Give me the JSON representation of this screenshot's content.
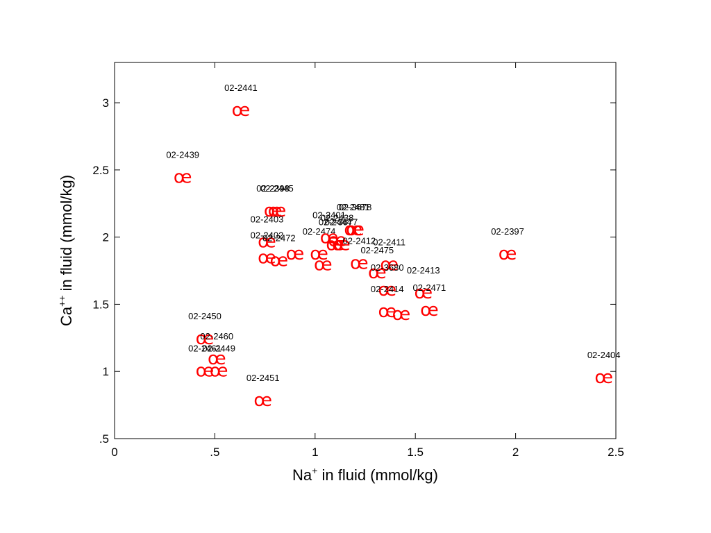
{
  "chart_data": {
    "type": "scatter",
    "title": "",
    "xlabel": {
      "prefix": "Na",
      "sup": "+",
      "suffix": " in fluid (mmol/kg)"
    },
    "ylabel": {
      "prefix": "Ca",
      "sup": "++",
      "suffix": " in fluid (mmol/kg)"
    },
    "xlim": [
      0,
      2.5
    ],
    "ylim": [
      0.5,
      3.3
    ],
    "xticks": [
      0,
      0.5,
      1,
      1.5,
      2,
      2.5
    ],
    "xtick_labels": [
      "0",
      ".5",
      "1",
      "1.5",
      "2",
      "2.5"
    ],
    "yticks": [
      0.5,
      1,
      1.5,
      2,
      2.5,
      3
    ],
    "ytick_labels": [
      ".5",
      "1",
      "1.5",
      "2",
      "2.5",
      "3"
    ],
    "grid": false,
    "marker_symbol": "œ",
    "marker_color": "#ff0000",
    "points": [
      {
        "x": 0.63,
        "y": 2.95,
        "label": "02-2441"
      },
      {
        "x": 0.34,
        "y": 2.45,
        "label": "02-2439"
      },
      {
        "x": 0.79,
        "y": 2.2,
        "label": "02-2398"
      },
      {
        "x": 0.81,
        "y": 2.2,
        "label": "02-2445"
      },
      {
        "x": 0.76,
        "y": 1.97,
        "label": "02-2403"
      },
      {
        "x": 0.76,
        "y": 1.85,
        "label": "02-2402"
      },
      {
        "x": 0.82,
        "y": 1.83,
        "label": "02-2472"
      },
      {
        "x": 0.9,
        "y": 1.88,
        "label": ""
      },
      {
        "x": 1.02,
        "y": 1.88,
        "label": "02-2474"
      },
      {
        "x": 1.04,
        "y": 1.8,
        "label": ""
      },
      {
        "x": 1.07,
        "y": 2.0,
        "label": "02-2401"
      },
      {
        "x": 1.1,
        "y": 1.95,
        "label": "02-2444"
      },
      {
        "x": 1.11,
        "y": 1.98,
        "label": "02-2438"
      },
      {
        "x": 1.13,
        "y": 1.95,
        "label": "02-3677"
      },
      {
        "x": 1.19,
        "y": 2.06,
        "label": "02-2481"
      },
      {
        "x": 1.2,
        "y": 2.06,
        "label": "02-3678"
      },
      {
        "x": 1.22,
        "y": 1.81,
        "label": "02-2412"
      },
      {
        "x": 1.31,
        "y": 1.74,
        "label": "02-2475"
      },
      {
        "x": 1.37,
        "y": 1.8,
        "label": "02-2411"
      },
      {
        "x": 1.36,
        "y": 1.61,
        "label": "02-3680"
      },
      {
        "x": 1.36,
        "y": 1.45,
        "label": "02-2414"
      },
      {
        "x": 1.43,
        "y": 1.43,
        "label": ""
      },
      {
        "x": 1.54,
        "y": 1.59,
        "label": "02-2413"
      },
      {
        "x": 1.57,
        "y": 1.46,
        "label": "02-2471"
      },
      {
        "x": 1.96,
        "y": 1.88,
        "label": "02-2397"
      },
      {
        "x": 2.44,
        "y": 0.96,
        "label": "02-2404"
      },
      {
        "x": 0.45,
        "y": 1.25,
        "label": "02-2450"
      },
      {
        "x": 0.51,
        "y": 1.1,
        "label": "02-2460"
      },
      {
        "x": 0.45,
        "y": 1.01,
        "label": "02-2461"
      },
      {
        "x": 0.52,
        "y": 1.01,
        "label": "02-2449"
      },
      {
        "x": 0.74,
        "y": 0.79,
        "label": "02-2451"
      }
    ]
  }
}
